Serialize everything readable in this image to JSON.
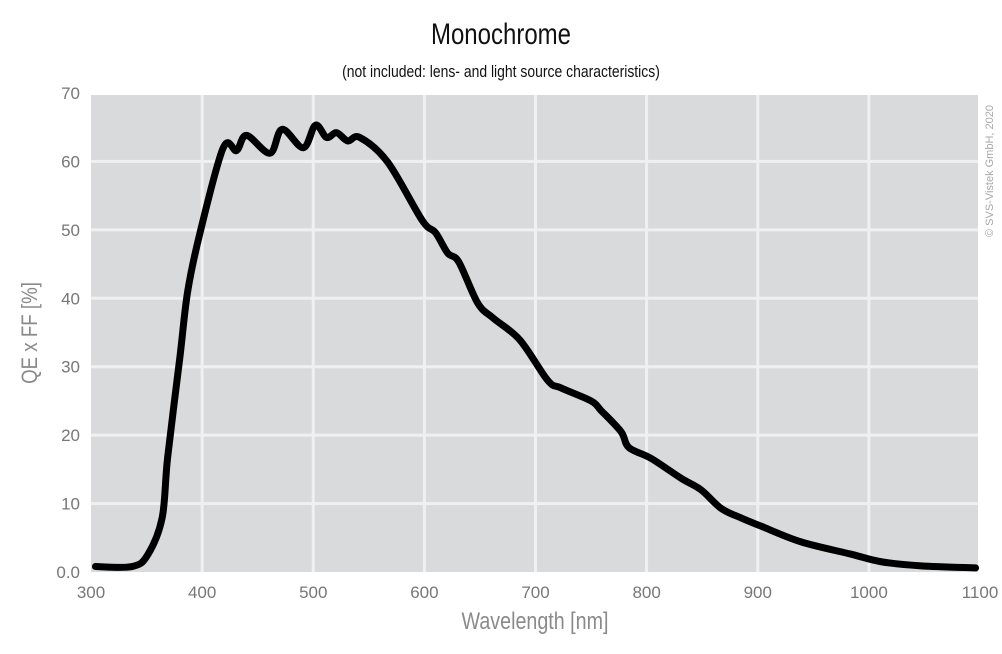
{
  "chart_data": {
    "type": "line",
    "title": "Monochrome",
    "subtitle": "(not included: lens- and light source characteristics)",
    "xlabel": "Wavelength [nm]",
    "ylabel": "QE x FF [%]",
    "xlim": [
      300,
      1100
    ],
    "ylim": [
      0,
      70
    ],
    "xticks": [
      "300",
      "400",
      "500",
      "600",
      "700",
      "800",
      "900",
      "1000",
      "1100"
    ],
    "yticks": [
      "0.0",
      "10",
      "20",
      "30",
      "40",
      "50",
      "60",
      "70"
    ],
    "grid": true,
    "background": "#d9dadc",
    "line_color": "#000000",
    "annotation": "© SVS-Vistek GmbH, 2020",
    "series": [
      {
        "x": [
          304,
          337,
          351,
          364,
          369,
          380,
          387,
          398,
          419,
          431,
          440,
          461,
          472,
          491,
          502,
          512,
          521,
          531,
          542,
          567,
          598,
          610,
          621,
          631,
          648,
          662,
          686,
          711,
          723,
          750,
          759,
          777,
          784,
          804,
          831,
          849,
          867,
          885,
          903,
          939,
          984,
          1011,
          1047,
          1096
        ],
        "y": [
          0.8,
          0.8,
          2.5,
          7.9,
          16.8,
          31.4,
          41,
          49.5,
          62,
          61.6,
          63.8,
          61.2,
          64.7,
          62,
          65.3,
          63.5,
          64.2,
          63,
          63.5,
          59.9,
          51.4,
          49.6,
          46.6,
          45.3,
          39.3,
          37.1,
          33.9,
          28,
          26.9,
          25,
          23.6,
          20.5,
          18.2,
          16.6,
          13.7,
          12,
          9.3,
          7.9,
          6.7,
          4.4,
          2.6,
          1.5,
          0.9,
          0.6
        ]
      }
    ]
  }
}
